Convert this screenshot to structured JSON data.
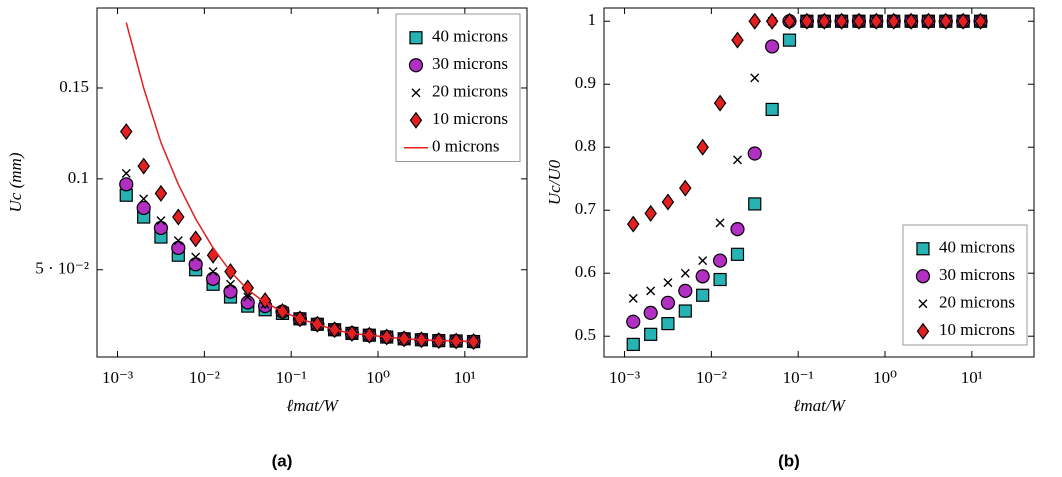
{
  "chart_data": [
    {
      "type": "scatter",
      "caption": "(a)",
      "xlabel": "ℓmat/W",
      "ylabel": "Uc (mm)",
      "xscale": "log",
      "legend": "upper right",
      "xlim": [
        0.00058,
        52
      ],
      "ylim": [
        0.002,
        0.194
      ],
      "xticks": [
        {
          "value": 0.001,
          "label": "10⁻³"
        },
        {
          "value": 0.01,
          "label": "10⁻²"
        },
        {
          "value": 0.1,
          "label": "10⁻¹"
        },
        {
          "value": 1,
          "label": "10⁰"
        },
        {
          "value": 10,
          "label": "10¹"
        }
      ],
      "yticks": [
        {
          "value": 0.05,
          "label": "5 · 10⁻²"
        },
        0.1,
        0.15
      ],
      "x": [
        0.00126,
        0.002,
        0.00316,
        0.00501,
        0.00794,
        0.0126,
        0.02,
        0.0316,
        0.0501,
        0.0794,
        0.126,
        0.2,
        0.316,
        0.501,
        0.794,
        1.26,
        2,
        3.16,
        5.01,
        7.94,
        12.6
      ],
      "series": [
        {
          "name": "40 microns",
          "color": "#27b3b3",
          "marker": "square",
          "values": [
            0.091,
            0.079,
            0.068,
            0.058,
            0.05,
            0.042,
            0.035,
            0.03,
            0.028,
            0.026,
            0.023,
            0.02,
            0.017,
            0.015,
            0.014,
            0.013,
            0.012,
            0.0115,
            0.011,
            0.0108,
            0.0105
          ]
        },
        {
          "name": "30 microns",
          "color": "#b22fc4",
          "marker": "circle",
          "values": [
            0.097,
            0.084,
            0.073,
            0.062,
            0.053,
            0.045,
            0.038,
            0.032,
            0.03,
            0.027,
            0.023,
            0.02,
            0.017,
            0.015,
            0.014,
            0.013,
            0.012,
            0.0115,
            0.011,
            0.0108,
            0.0105
          ]
        },
        {
          "name": "20 microns",
          "color": "#000000",
          "marker": "x",
          "values": [
            0.103,
            0.089,
            0.077,
            0.066,
            0.057,
            0.049,
            0.042,
            0.035,
            0.031,
            0.027,
            0.023,
            0.02,
            0.017,
            0.015,
            0.014,
            0.013,
            0.012,
            0.0115,
            0.011,
            0.0108,
            0.0105
          ]
        },
        {
          "name": "10 microns",
          "color": "#e3201f",
          "marker": "diamond",
          "values": [
            0.126,
            0.107,
            0.092,
            0.079,
            0.067,
            0.058,
            0.049,
            0.04,
            0.033,
            0.027,
            0.023,
            0.02,
            0.017,
            0.015,
            0.014,
            0.013,
            0.012,
            0.0115,
            0.011,
            0.0108,
            0.0105
          ]
        },
        {
          "name": "0 microns",
          "color": "#e3201f",
          "marker": "line",
          "values": [
            0.186,
            0.15,
            0.12,
            0.097,
            0.078,
            0.062,
            0.049,
            0.039,
            0.032,
            0.027,
            0.023,
            0.02,
            0.017,
            0.015,
            0.014,
            0.013,
            0.012,
            0.0115,
            0.011,
            0.0108,
            0.0105
          ]
        }
      ]
    },
    {
      "type": "scatter",
      "caption": "(b)",
      "xlabel": "ℓmat/W",
      "ylabel": "Uc/U0",
      "xscale": "log",
      "legend": "lower right",
      "xlim": [
        0.00058,
        52
      ],
      "ylim": [
        0.467,
        1.021
      ],
      "xticks": [
        {
          "value": 0.001,
          "label": "10⁻³"
        },
        {
          "value": 0.01,
          "label": "10⁻²"
        },
        {
          "value": 0.1,
          "label": "10⁻¹"
        },
        {
          "value": 1,
          "label": "10⁰"
        },
        {
          "value": 10,
          "label": "10¹"
        }
      ],
      "yticks": [
        0.5,
        0.6,
        0.7,
        0.8,
        0.9,
        1
      ],
      "x": [
        0.00126,
        0.002,
        0.00316,
        0.00501,
        0.00794,
        0.0126,
        0.02,
        0.0316,
        0.0501,
        0.0794,
        0.126,
        0.2,
        0.316,
        0.501,
        0.794,
        1.26,
        2,
        3.16,
        5.01,
        7.94,
        12.6
      ],
      "series": [
        {
          "name": "40 microns",
          "color": "#27b3b3",
          "marker": "square",
          "values": [
            0.487,
            0.503,
            0.52,
            0.54,
            0.565,
            0.59,
            0.63,
            0.71,
            0.86,
            0.97,
            1,
            1,
            1,
            1,
            1,
            1,
            1,
            1,
            1,
            1,
            1
          ]
        },
        {
          "name": "30 microns",
          "color": "#b22fc4",
          "marker": "circle",
          "values": [
            0.523,
            0.537,
            0.553,
            0.572,
            0.595,
            0.62,
            0.67,
            0.79,
            0.96,
            1,
            1,
            1,
            1,
            1,
            1,
            1,
            1,
            1,
            1,
            1,
            1
          ]
        },
        {
          "name": "20 microns",
          "color": "#000000",
          "marker": "x",
          "values": [
            0.56,
            0.572,
            0.585,
            0.6,
            0.62,
            0.68,
            0.78,
            0.91,
            1,
            1,
            1,
            1,
            1,
            1,
            1,
            1,
            1,
            1,
            1,
            1,
            1
          ]
        },
        {
          "name": "10 microns",
          "color": "#e3201f",
          "marker": "diamond",
          "values": [
            0.678,
            0.695,
            0.713,
            0.735,
            0.8,
            0.87,
            0.97,
            1,
            1,
            1,
            1,
            1,
            1,
            1,
            1,
            1,
            1,
            1,
            1,
            1,
            1
          ]
        }
      ]
    }
  ]
}
